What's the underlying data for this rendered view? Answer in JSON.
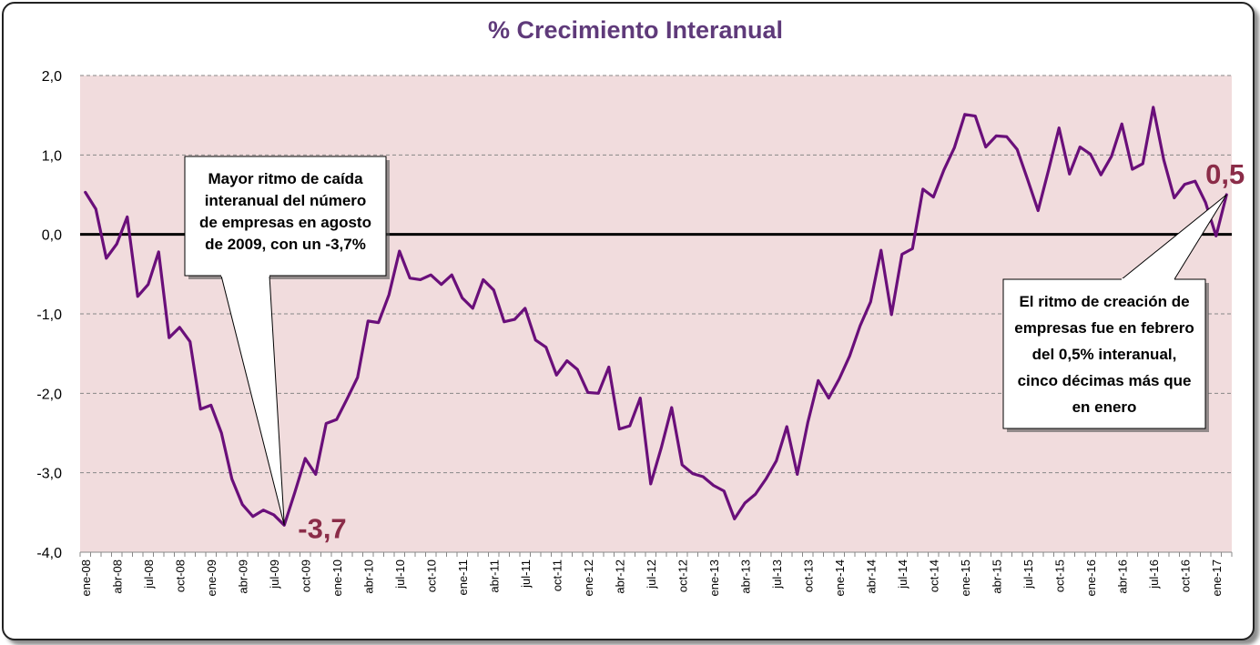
{
  "chart_data": {
    "type": "line",
    "title": "% Crecimiento Interanual",
    "xlabel": "",
    "ylabel": "",
    "ylim": [
      -4.0,
      2.0
    ],
    "yticks": [
      "2,0",
      "1,0",
      "0,0",
      "-1,0",
      "-2,0",
      "-3,0",
      "-4,0"
    ],
    "ytick_values": [
      2,
      1,
      0,
      -1,
      -2,
      -3,
      -4
    ],
    "grid": true,
    "legend": "none",
    "colors": {
      "line": "#6a0f7a",
      "plot_bg": "#f1dcdd",
      "zero_line": "#000000",
      "grid": "#888888",
      "title": "#5f3a7a",
      "highlight": "#8b2c48"
    },
    "x_tick_labels": [
      "ene-08",
      "abr-08",
      "jul-08",
      "oct-08",
      "ene-09",
      "abr-09",
      "jul-09",
      "oct-09",
      "ene-10",
      "abr-10",
      "jul-10",
      "oct-10",
      "ene-11",
      "abr-11",
      "jul-11",
      "oct-11",
      "ene-12",
      "abr-12",
      "jul-12",
      "oct-12",
      "ene-13",
      "abr-13",
      "jul-13",
      "oct-13",
      "ene-14",
      "abr-14",
      "jul-14",
      "oct-14",
      "ene-15",
      "abr-15",
      "jul-15",
      "oct-15",
      "ene-16",
      "abr-16",
      "jul-16",
      "oct-16",
      "ene-17"
    ],
    "series": [
      {
        "values": [
          0.53,
          0.32,
          -0.3,
          -0.12,
          0.22,
          -0.78,
          -0.63,
          -0.22,
          -1.3,
          -1.17,
          -1.35,
          -2.2,
          -2.15,
          -2.5,
          -3.08,
          -3.4,
          -3.55,
          -3.47,
          -3.53,
          -3.66,
          -3.25,
          -2.82,
          -3.02,
          -2.38,
          -2.33,
          -2.07,
          -1.8,
          -1.09,
          -1.11,
          -0.76,
          -0.21,
          -0.55,
          -0.57,
          -0.51,
          -0.63,
          -0.51,
          -0.8,
          -0.93,
          -0.57,
          -0.7,
          -1.1,
          -1.07,
          -0.93,
          -1.33,
          -1.42,
          -1.77,
          -1.59,
          -1.7,
          -1.99,
          -2.0,
          -1.67,
          -2.45,
          -2.41,
          -2.06,
          -3.14,
          -2.69,
          -2.18,
          -2.9,
          -3.01,
          -3.05,
          -3.16,
          -3.23,
          -3.58,
          -3.38,
          -3.27,
          -3.08,
          -2.85,
          -2.42,
          -3.02,
          -2.37,
          -1.84,
          -2.06,
          -1.82,
          -1.53,
          -1.15,
          -0.85,
          -0.2,
          -1.01,
          -0.25,
          -0.18,
          0.57,
          0.47,
          0.81,
          1.09,
          1.51,
          1.49,
          1.1,
          1.24,
          1.23,
          1.07,
          0.69,
          0.3,
          0.81,
          1.34,
          0.76,
          1.1,
          1.01,
          0.75,
          0.98,
          1.39,
          0.82,
          0.89,
          1.6,
          0.94,
          0.46,
          0.63,
          0.67,
          0.4,
          -0.02,
          0.5
        ]
      }
    ],
    "annotations": {
      "min_value_label": "-3,7",
      "last_value_label": "0,5",
      "callout_min": [
        "Mayor ritmo de caída",
        "interanual del número",
        "de empresas en agosto",
        "de 2009,  con un -3,7%"
      ],
      "callout_last": [
        "El ritmo de creación de",
        "empresas fue en febrero",
        "del 0,5% interanual,",
        "cinco décimas más que",
        "en enero"
      ]
    }
  }
}
